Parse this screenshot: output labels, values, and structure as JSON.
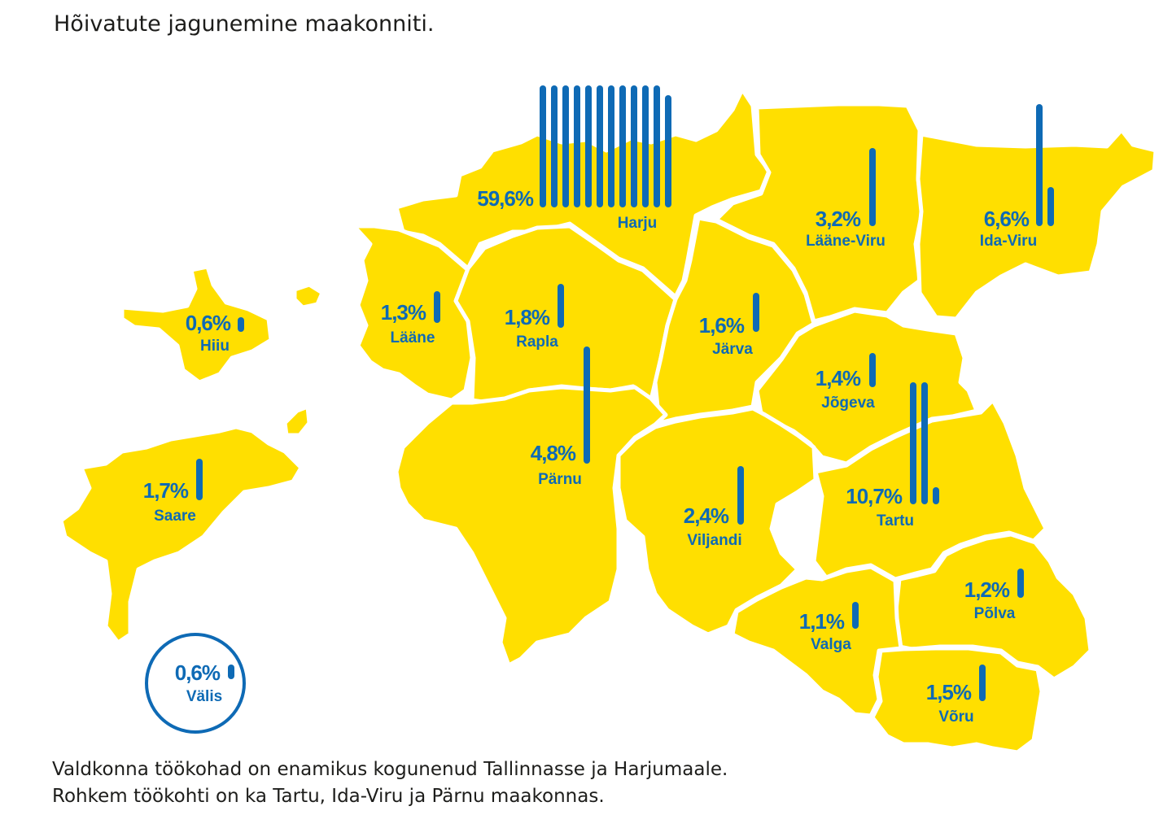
{
  "title": "Hõivatute jagunemine maakonniti.",
  "footnote": [
    "Valdkonna töökohad on enamikus kogunenud Tallinnasse ja Harjumaale.",
    "Rohkem töökohti on ka Tartu, Ida-Viru ja Pärnu maakonnas."
  ],
  "colors": {
    "region": "#ffdf00",
    "border": "#ffffff",
    "accent": "#0e6ab5"
  },
  "regions": [
    {
      "id": "harju",
      "name": "Harju",
      "value": 59.6,
      "label": "59,6%"
    },
    {
      "id": "laane-viru",
      "name": "Lääne-Viru",
      "value": 3.2,
      "label": "3,2%"
    },
    {
      "id": "ida-viru",
      "name": "Ida-Viru",
      "value": 6.6,
      "label": "6,6%"
    },
    {
      "id": "hiiu",
      "name": "Hiiu",
      "value": 0.6,
      "label": "0,6%"
    },
    {
      "id": "laane",
      "name": "Lääne",
      "value": 1.3,
      "label": "1,3%"
    },
    {
      "id": "rapla",
      "name": "Rapla",
      "value": 1.8,
      "label": "1,8%"
    },
    {
      "id": "jarva",
      "name": "Järva",
      "value": 1.6,
      "label": "1,6%"
    },
    {
      "id": "jogeva",
      "name": "Jõgeva",
      "value": 1.4,
      "label": "1,4%"
    },
    {
      "id": "parnu",
      "name": "Pärnu",
      "value": 4.8,
      "label": "4,8%"
    },
    {
      "id": "saare",
      "name": "Saare",
      "value": 1.7,
      "label": "1,7%"
    },
    {
      "id": "viljandi",
      "name": "Viljandi",
      "value": 2.4,
      "label": "2,4%"
    },
    {
      "id": "tartu",
      "name": "Tartu",
      "value": 10.7,
      "label": "10,7%"
    },
    {
      "id": "polva",
      "name": "Põlva",
      "value": 1.2,
      "label": "1,2%"
    },
    {
      "id": "valga",
      "name": "Valga",
      "value": 1.1,
      "label": "1,1%"
    },
    {
      "id": "voru",
      "name": "Võru",
      "value": 1.5,
      "label": "1,5%"
    },
    {
      "id": "valis",
      "name": "Välis",
      "value": 0.6,
      "label": "0,6%"
    }
  ]
}
